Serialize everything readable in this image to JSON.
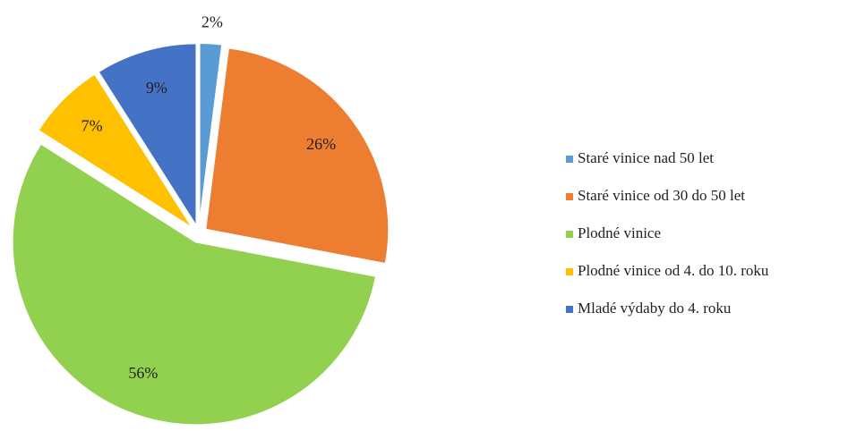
{
  "chart_data": {
    "type": "pie",
    "categories": [
      "Staré vinice nad 50 let",
      "Staré vinice od 30 do 50 let",
      "Plodné vinice",
      "Plodné vinice od 4. do 10. roku",
      "Mladé výdaby do 4. roku"
    ],
    "values": [
      2,
      26,
      56,
      7,
      9
    ],
    "value_labels": [
      "2%",
      "26%",
      "56%",
      "7%",
      "9%"
    ],
    "colors": [
      "#5b9bd5",
      "#ed7d31",
      "#92d050",
      "#ffc000",
      "#4472c4"
    ],
    "legend": "right"
  }
}
